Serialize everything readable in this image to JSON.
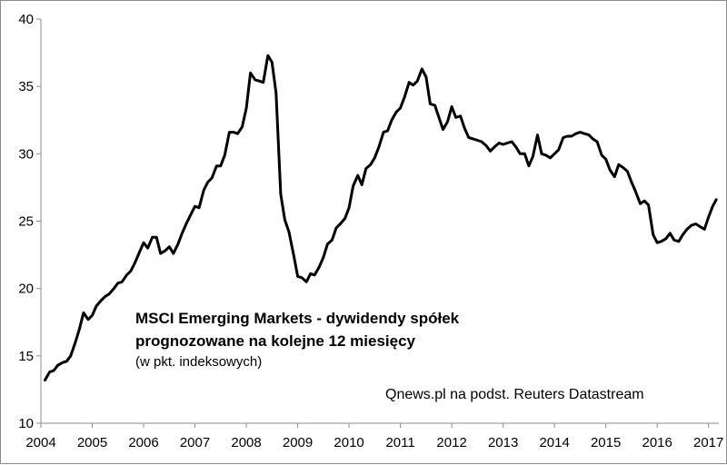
{
  "chart_data": {
    "type": "line",
    "title": "MSCI Emerging Markets - dywidendy spółek",
    "title_line2": "prognozowane na kolejne 12 miesięcy",
    "subtitle": "(w pkt. indeksowych)",
    "source": "Qnews.pl na podst. Reuters Datastream",
    "xlabel": "",
    "ylabel": "",
    "xlim": [
      2004,
      2017.2
    ],
    "ylim": [
      10,
      40
    ],
    "yticks": [
      10,
      15,
      20,
      25,
      30,
      35,
      40
    ],
    "xticks": [
      2004,
      2005,
      2006,
      2007,
      2008,
      2009,
      2010,
      2011,
      2012,
      2013,
      2014,
      2015,
      2016,
      2017
    ],
    "grid": false,
    "line_color": "#000000",
    "series": [
      {
        "name": "MSCI Emerging Markets - dywidendy",
        "points": [
          [
            2004.08,
            13.2
          ],
          [
            2004.17,
            13.8
          ],
          [
            2004.25,
            13.9
          ],
          [
            2004.33,
            14.3
          ],
          [
            2004.42,
            14.5
          ],
          [
            2004.5,
            14.6
          ],
          [
            2004.58,
            15.0
          ],
          [
            2004.67,
            16.0
          ],
          [
            2004.75,
            17.0
          ],
          [
            2004.83,
            18.2
          ],
          [
            2004.92,
            17.7
          ],
          [
            2005.0,
            18.0
          ],
          [
            2005.08,
            18.7
          ],
          [
            2005.17,
            19.1
          ],
          [
            2005.25,
            19.4
          ],
          [
            2005.33,
            19.6
          ],
          [
            2005.42,
            20.0
          ],
          [
            2005.5,
            20.4
          ],
          [
            2005.58,
            20.5
          ],
          [
            2005.67,
            21.0
          ],
          [
            2005.75,
            21.3
          ],
          [
            2005.83,
            21.9
          ],
          [
            2005.92,
            22.7
          ],
          [
            2006.0,
            23.4
          ],
          [
            2006.08,
            23.0
          ],
          [
            2006.17,
            23.8
          ],
          [
            2006.25,
            23.8
          ],
          [
            2006.33,
            22.6
          ],
          [
            2006.42,
            22.8
          ],
          [
            2006.5,
            23.1
          ],
          [
            2006.58,
            22.6
          ],
          [
            2006.67,
            23.3
          ],
          [
            2006.75,
            24.1
          ],
          [
            2006.83,
            24.8
          ],
          [
            2006.92,
            25.5
          ],
          [
            2007.0,
            26.1
          ],
          [
            2007.08,
            26.0
          ],
          [
            2007.17,
            27.3
          ],
          [
            2007.25,
            27.9
          ],
          [
            2007.33,
            28.2
          ],
          [
            2007.42,
            29.1
          ],
          [
            2007.5,
            29.1
          ],
          [
            2007.58,
            29.9
          ],
          [
            2007.67,
            31.6
          ],
          [
            2007.75,
            31.6
          ],
          [
            2007.83,
            31.5
          ],
          [
            2007.92,
            32.0
          ],
          [
            2008.0,
            33.4
          ],
          [
            2008.08,
            36.0
          ],
          [
            2008.17,
            35.5
          ],
          [
            2008.25,
            35.4
          ],
          [
            2008.33,
            35.3
          ],
          [
            2008.42,
            37.3
          ],
          [
            2008.5,
            36.8
          ],
          [
            2008.58,
            34.5
          ],
          [
            2008.67,
            27.0
          ],
          [
            2008.75,
            25.1
          ],
          [
            2008.83,
            24.2
          ],
          [
            2008.92,
            22.5
          ],
          [
            2009.0,
            20.9
          ],
          [
            2009.08,
            20.8
          ],
          [
            2009.17,
            20.5
          ],
          [
            2009.25,
            21.1
          ],
          [
            2009.33,
            21.0
          ],
          [
            2009.42,
            21.6
          ],
          [
            2009.5,
            22.3
          ],
          [
            2009.58,
            23.3
          ],
          [
            2009.67,
            23.6
          ],
          [
            2009.75,
            24.5
          ],
          [
            2009.83,
            24.8
          ],
          [
            2009.92,
            25.2
          ],
          [
            2010.0,
            26.0
          ],
          [
            2010.08,
            27.6
          ],
          [
            2010.17,
            28.4
          ],
          [
            2010.25,
            27.7
          ],
          [
            2010.33,
            28.9
          ],
          [
            2010.42,
            29.2
          ],
          [
            2010.5,
            29.7
          ],
          [
            2010.58,
            30.5
          ],
          [
            2010.67,
            31.6
          ],
          [
            2010.75,
            31.7
          ],
          [
            2010.83,
            32.5
          ],
          [
            2010.92,
            33.1
          ],
          [
            2011.0,
            33.4
          ],
          [
            2011.08,
            34.2
          ],
          [
            2011.17,
            35.3
          ],
          [
            2011.25,
            35.1
          ],
          [
            2011.33,
            35.4
          ],
          [
            2011.42,
            36.3
          ],
          [
            2011.5,
            35.7
          ],
          [
            2011.58,
            33.7
          ],
          [
            2011.67,
            33.6
          ],
          [
            2011.75,
            32.7
          ],
          [
            2011.83,
            31.8
          ],
          [
            2011.92,
            32.4
          ],
          [
            2012.0,
            33.5
          ],
          [
            2012.08,
            32.7
          ],
          [
            2012.17,
            32.8
          ],
          [
            2012.25,
            31.9
          ],
          [
            2012.33,
            31.2
          ],
          [
            2012.42,
            31.1
          ],
          [
            2012.5,
            31.0
          ],
          [
            2012.58,
            30.9
          ],
          [
            2012.67,
            30.6
          ],
          [
            2012.75,
            30.2
          ],
          [
            2012.83,
            30.5
          ],
          [
            2012.92,
            30.8
          ],
          [
            2013.0,
            30.7
          ],
          [
            2013.08,
            30.8
          ],
          [
            2013.17,
            30.9
          ],
          [
            2013.25,
            30.5
          ],
          [
            2013.33,
            30.0
          ],
          [
            2013.42,
            30.0
          ],
          [
            2013.5,
            29.1
          ],
          [
            2013.58,
            29.8
          ],
          [
            2013.67,
            31.4
          ],
          [
            2013.75,
            30.0
          ],
          [
            2013.83,
            29.9
          ],
          [
            2013.92,
            29.7
          ],
          [
            2014.0,
            30.0
          ],
          [
            2014.08,
            30.3
          ],
          [
            2014.17,
            31.2
          ],
          [
            2014.25,
            31.3
          ],
          [
            2014.33,
            31.3
          ],
          [
            2014.42,
            31.5
          ],
          [
            2014.5,
            31.6
          ],
          [
            2014.58,
            31.5
          ],
          [
            2014.67,
            31.4
          ],
          [
            2014.75,
            31.1
          ],
          [
            2014.83,
            30.9
          ],
          [
            2014.92,
            29.9
          ],
          [
            2015.0,
            29.6
          ],
          [
            2015.08,
            28.8
          ],
          [
            2015.17,
            28.3
          ],
          [
            2015.25,
            29.2
          ],
          [
            2015.33,
            29.0
          ],
          [
            2015.42,
            28.7
          ],
          [
            2015.5,
            27.9
          ],
          [
            2015.58,
            27.2
          ],
          [
            2015.67,
            26.3
          ],
          [
            2015.75,
            26.5
          ],
          [
            2015.83,
            26.2
          ],
          [
            2015.92,
            24.0
          ],
          [
            2016.0,
            23.4
          ],
          [
            2016.08,
            23.5
          ],
          [
            2016.17,
            23.7
          ],
          [
            2016.25,
            24.1
          ],
          [
            2016.33,
            23.6
          ],
          [
            2016.42,
            23.5
          ],
          [
            2016.5,
            24.0
          ],
          [
            2016.58,
            24.4
          ],
          [
            2016.67,
            24.7
          ],
          [
            2016.75,
            24.8
          ],
          [
            2016.83,
            24.6
          ],
          [
            2016.92,
            24.4
          ],
          [
            2017.0,
            25.3
          ],
          [
            2017.08,
            26.1
          ],
          [
            2017.15,
            26.6
          ]
        ]
      }
    ]
  }
}
